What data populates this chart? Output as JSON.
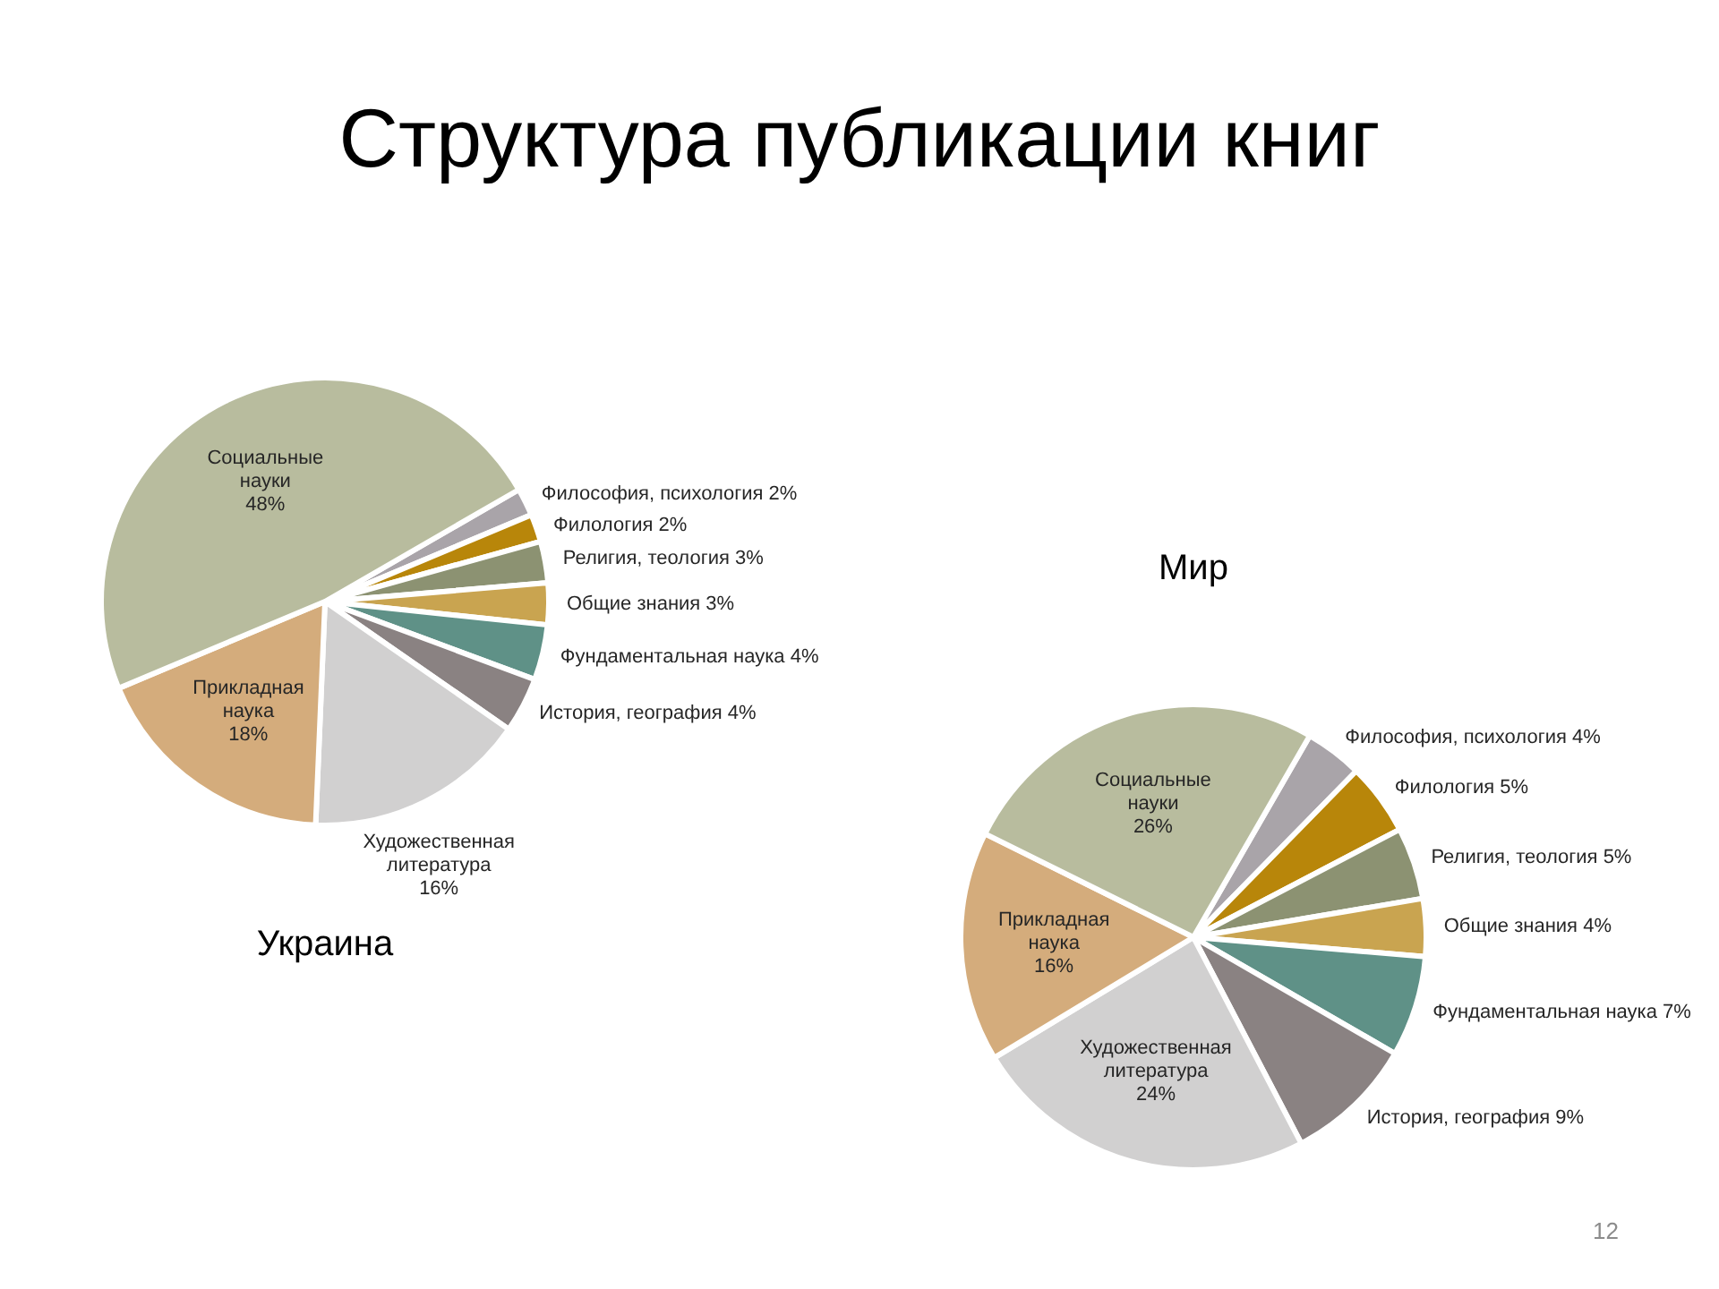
{
  "chart_data": [
    {
      "type": "other",
      "title": "Структура публикации книг",
      "annotations": [
        "12"
      ]
    },
    {
      "type": "pie",
      "title": "Украина",
      "categories": [
        "Философия, психология",
        "Филология",
        "Религия, теология",
        "Общие знания",
        "Фундаментальная наука",
        "История, география",
        "Художественная литература",
        "Прикладная наука",
        "Социальные науки"
      ],
      "values": [
        2,
        2,
        3,
        3,
        4,
        4,
        16,
        18,
        48
      ],
      "value_labels": [
        "2%",
        "2%",
        "3%",
        "3%",
        "4%",
        "4%",
        "16%",
        "18%",
        "48%"
      ],
      "colors": [
        "#a9a4a9",
        "#b8860a",
        "#8c9272",
        "#c9a450",
        "#5f9187",
        "#8a8282",
        "#d1d0d0",
        "#d4ac7c",
        "#b8bc9e"
      ]
    },
    {
      "type": "pie",
      "title": "Мир",
      "categories": [
        "Философия, психология",
        "Филология",
        "Религия, теология",
        "Общие знания",
        "Фундаментальная наука",
        "История, география",
        "Художественная литература",
        "Прикладная наука",
        "Социальные науки"
      ],
      "values": [
        4,
        5,
        5,
        4,
        7,
        9,
        24,
        16,
        26
      ],
      "value_labels": [
        "4%",
        "5%",
        "5%",
        "4%",
        "7%",
        "9%",
        "24%",
        "16%",
        "26%"
      ],
      "colors": [
        "#a9a4a9",
        "#b8860a",
        "#8c9272",
        "#c9a450",
        "#5f9187",
        "#8a8282",
        "#d1d0d0",
        "#d4ac7c",
        "#b8bc9e"
      ]
    }
  ]
}
